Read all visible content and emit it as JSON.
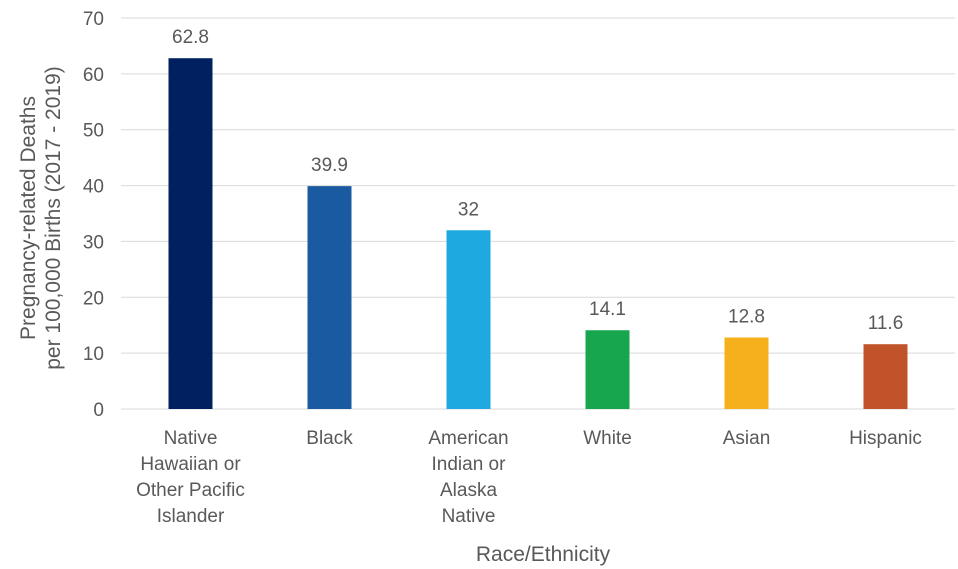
{
  "chart_data": {
    "type": "bar",
    "categories": [
      "Native Hawaiian or Other Pacific Islander",
      "Black",
      "American Indian or Alaska Native",
      "White",
      "Asian",
      "Hispanic"
    ],
    "category_lines": [
      [
        "Native",
        "Hawaiian or",
        "Other Pacific",
        "Islander"
      ],
      [
        "Black"
      ],
      [
        "American",
        "Indian or",
        "Alaska",
        "Native"
      ],
      [
        "White"
      ],
      [
        "Asian"
      ],
      [
        "Hispanic"
      ]
    ],
    "values": [
      62.8,
      39.9,
      32,
      14.1,
      12.8,
      11.6
    ],
    "data_labels": [
      "62.8",
      "39.9",
      "32",
      "14.1",
      "12.8",
      "11.6"
    ],
    "colors": [
      "#002060",
      "#1a5aa0",
      "#1fa9e1",
      "#17a64e",
      "#f5b01c",
      "#c0532a"
    ],
    "title": "",
    "xlabel": "Race/Ethnicity",
    "ylabel_lines": [
      "Pregnancy-related Deaths",
      "per 100,000 Births (2017 - 2019)"
    ],
    "ylim": [
      0,
      70
    ],
    "yticks": [
      0,
      10,
      20,
      30,
      40,
      50,
      60,
      70
    ],
    "grid": true,
    "legend": "none"
  }
}
